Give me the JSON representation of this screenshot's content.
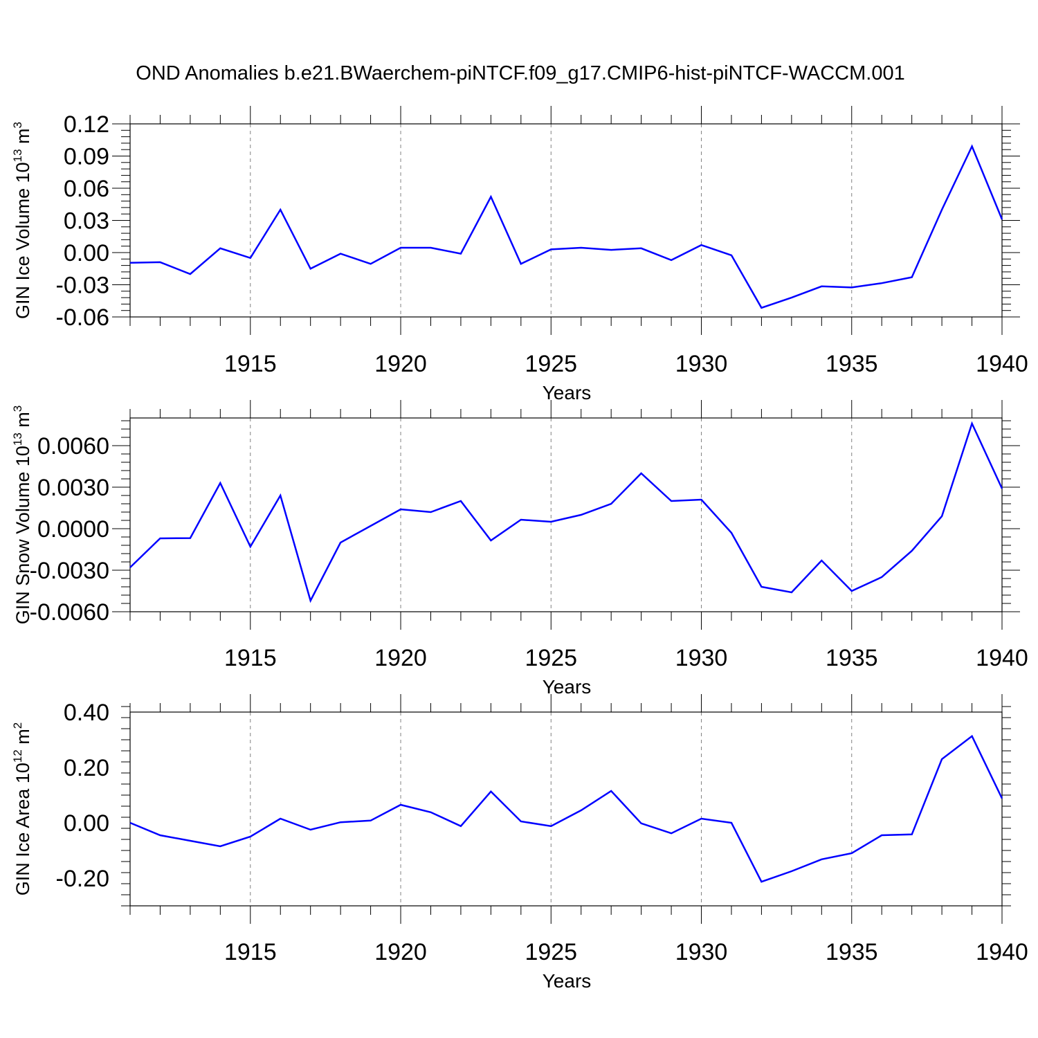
{
  "figure_title": "OND Anomalies b.e21.BWaerchem-piNTCF.f09_g17.CMIP6-hist-piNTCF-WACCM.001",
  "colors": {
    "line": "#0000ff",
    "axis": "#000000",
    "grid": "#808080"
  },
  "chart_data": [
    {
      "type": "line",
      "title": "OND Anomalies b.e21.BWaerchem-piNTCF.f09_g17.CMIP6-hist-piNTCF-WACCM.001",
      "xlabel": "Years",
      "ylabel": {
        "prefix": "GIN Ice Volume 10",
        "exp": "13",
        "unit": " m",
        "unit_exp": "3"
      },
      "xlim": [
        1911,
        1940
      ],
      "ylim": [
        -0.06,
        0.12
      ],
      "yticks": [
        -0.06,
        -0.03,
        0.0,
        0.03,
        0.06,
        0.09,
        0.12
      ],
      "ytick_labels": [
        "-0.06",
        "-0.03",
        "0.00",
        "0.03",
        "0.06",
        "0.09",
        "0.12"
      ],
      "xticks": [
        1915,
        1920,
        1925,
        1930,
        1935,
        1940
      ],
      "xtick_labels": [
        "1915",
        "1920",
        "1925",
        "1930",
        "1935",
        "1940"
      ],
      "grid": "vertical dashed at major x ticks",
      "series": [
        {
          "name": "GIN Ice Volume",
          "x": [
            1911,
            1912,
            1913,
            1914,
            1915,
            1916,
            1917,
            1918,
            1919,
            1920,
            1921,
            1922,
            1923,
            1924,
            1925,
            1926,
            1927,
            1928,
            1929,
            1930,
            1931,
            1932,
            1933,
            1934,
            1935,
            1936,
            1937,
            1938,
            1939,
            1940
          ],
          "values": [
            -0.0095,
            -0.009,
            -0.02,
            0.004,
            -0.005,
            0.04,
            -0.015,
            -0.001,
            -0.0105,
            0.0045,
            0.0045,
            -0.001,
            0.052,
            -0.0105,
            0.003,
            0.0045,
            0.0025,
            0.004,
            -0.007,
            0.007,
            -0.0025,
            -0.0515,
            -0.042,
            -0.0315,
            -0.0325,
            -0.0285,
            -0.023,
            0.04,
            0.099,
            0.031
          ]
        }
      ]
    },
    {
      "type": "line",
      "xlabel": "Years",
      "ylabel": {
        "prefix": "GIN Snow Volume 10",
        "exp": "13",
        "unit": " m",
        "unit_exp": "3"
      },
      "xlim": [
        1911,
        1940
      ],
      "ylim": [
        -0.006,
        0.008
      ],
      "yticks": [
        -0.006,
        -0.003,
        0.0,
        0.003,
        0.006
      ],
      "ytick_labels": [
        "-0.0060",
        "-0.0030",
        "0.0000",
        "0.0030",
        "0.0060"
      ],
      "xticks": [
        1915,
        1920,
        1925,
        1930,
        1935,
        1940
      ],
      "xtick_labels": [
        "1915",
        "1920",
        "1925",
        "1930",
        "1935",
        "1940"
      ],
      "grid": "vertical dashed at major x ticks",
      "series": [
        {
          "name": "GIN Snow Volume",
          "x": [
            1911,
            1912,
            1913,
            1914,
            1915,
            1916,
            1917,
            1918,
            1919,
            1920,
            1921,
            1922,
            1923,
            1924,
            1925,
            1926,
            1927,
            1928,
            1929,
            1930,
            1931,
            1932,
            1933,
            1934,
            1935,
            1936,
            1937,
            1938,
            1939,
            1940
          ],
          "values": [
            -0.0028,
            -0.0007,
            -0.00068,
            0.0033,
            -0.0013,
            0.0024,
            -0.0052,
            -0.001,
            0.0002,
            0.0014,
            0.0012,
            0.002,
            -0.00085,
            0.00065,
            0.0005,
            0.001,
            0.0018,
            0.004,
            0.002,
            0.0021,
            -0.0003,
            -0.0042,
            -0.0046,
            -0.0023,
            -0.0045,
            -0.0035,
            -0.0016,
            0.0009,
            0.0076,
            0.0029
          ]
        }
      ]
    },
    {
      "type": "line",
      "xlabel": "Years",
      "ylabel": {
        "prefix": "GIN Ice Area 10",
        "exp": "12",
        "unit": " m",
        "unit_exp": "2"
      },
      "xlim": [
        1911,
        1940
      ],
      "ylim": [
        -0.3,
        0.4
      ],
      "yticks": [
        -0.2,
        0.0,
        0.2,
        0.4
      ],
      "ytick_labels": [
        "-0.20",
        "0.00",
        "0.20",
        "0.40"
      ],
      "xticks": [
        1915,
        1920,
        1925,
        1930,
        1935,
        1940
      ],
      "xtick_labels": [
        "1915",
        "1920",
        "1925",
        "1930",
        "1935",
        "1940"
      ],
      "grid": "vertical dashed at major x ticks",
      "series": [
        {
          "name": "GIN Ice Area",
          "x": [
            1911,
            1912,
            1913,
            1914,
            1915,
            1916,
            1917,
            1918,
            1919,
            1920,
            1921,
            1922,
            1923,
            1924,
            1925,
            1926,
            1927,
            1928,
            1929,
            1930,
            1931,
            1932,
            1933,
            1934,
            1935,
            1936,
            1937,
            1938,
            1939,
            1940
          ],
          "values": [
            0.0,
            -0.045,
            -0.065,
            -0.085,
            -0.05,
            0.015,
            -0.025,
            0.002,
            0.008,
            0.065,
            0.038,
            -0.012,
            0.113,
            0.005,
            -0.012,
            0.045,
            0.115,
            -0.002,
            -0.038,
            0.015,
            0.0,
            -0.213,
            -0.175,
            -0.132,
            -0.11,
            -0.045,
            -0.042,
            0.23,
            0.313,
            0.088
          ]
        }
      ]
    }
  ]
}
